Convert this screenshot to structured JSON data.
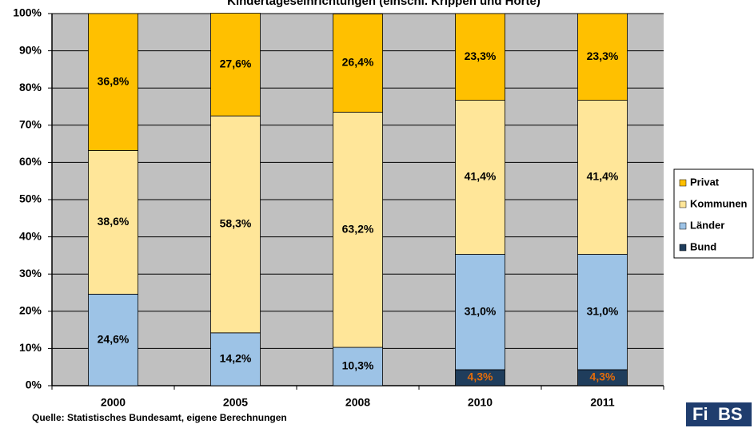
{
  "chart_data": {
    "type": "stacked_bar",
    "title": "Kindertageseinrichtungen (einschl. Krippen und Horte)",
    "categories": [
      "2000",
      "2005",
      "2008",
      "2010",
      "2011"
    ],
    "series": [
      {
        "name": "Bund",
        "color": "#1f3d5c",
        "label_color": "#e46c0a",
        "values": [
          0,
          0,
          0,
          4.3,
          4.3
        ],
        "value_labels": [
          null,
          null,
          null,
          "4,3%",
          "4,3%"
        ]
      },
      {
        "name": "Länder",
        "color": "#9dc3e6",
        "values": [
          24.6,
          14.2,
          10.3,
          31.0,
          31.0
        ],
        "value_labels": [
          "24,6%",
          "14,2%",
          "10,3%",
          "31,0%",
          "31,0%"
        ]
      },
      {
        "name": "Kommunen",
        "color": "#ffe699",
        "values": [
          38.6,
          58.3,
          63.2,
          41.4,
          41.4
        ],
        "value_labels": [
          "38,6%",
          "58,3%",
          "63,2%",
          "41,4%",
          "41,4%"
        ]
      },
      {
        "name": "Privat",
        "color": "#ffc000",
        "values": [
          36.8,
          27.6,
          26.4,
          23.3,
          23.3
        ],
        "value_labels": [
          "36,8%",
          "27,6%",
          "26,4%",
          "23,3%",
          "23,3%"
        ]
      }
    ],
    "ylim": [
      0,
      100
    ],
    "yticks": [
      {
        "value": 0,
        "label": "0%"
      },
      {
        "value": 10,
        "label": "10%"
      },
      {
        "value": 20,
        "label": "20%"
      },
      {
        "value": 30,
        "label": "30%"
      },
      {
        "value": 40,
        "label": "40%"
      },
      {
        "value": 50,
        "label": "50%"
      },
      {
        "value": 60,
        "label": "60%"
      },
      {
        "value": 70,
        "label": "70%"
      },
      {
        "value": 80,
        "label": "80%"
      },
      {
        "value": 90,
        "label": "90%"
      },
      {
        "value": 100,
        "label": "100%"
      }
    ],
    "grid": true,
    "legend": "right",
    "source": "Quelle: Statistisches Bundesamt, eigene Berechnungen",
    "logo": [
      "Fi",
      "BS"
    ]
  }
}
